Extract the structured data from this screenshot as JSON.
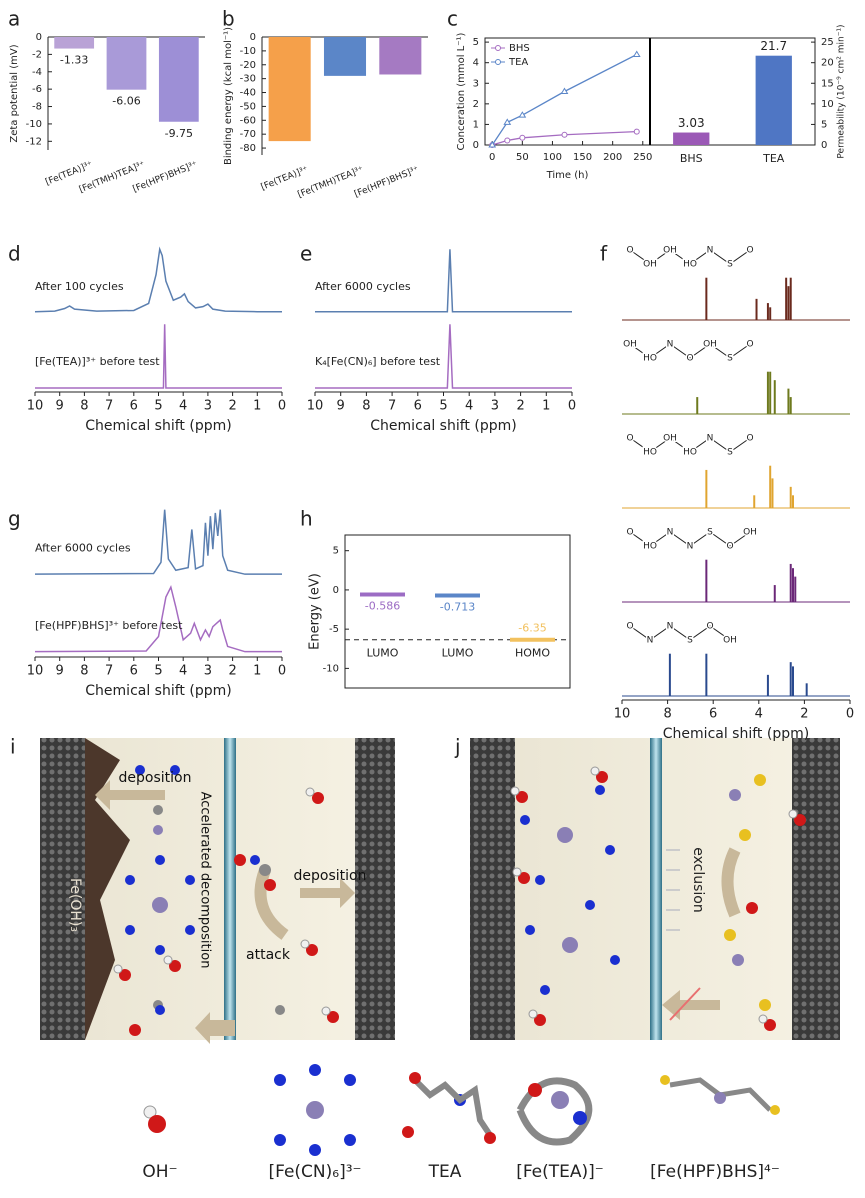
{
  "chart_data": [
    {
      "panel": "a",
      "type": "bar",
      "ylabel": "Zeta potential (mV)",
      "categories": [
        "[Fe(TEA)]³⁺",
        "[Fe(TMH)TEA]³⁺",
        "[Fe(HPF)BHS]³⁺"
      ],
      "values": [
        -1.33,
        -6.06,
        -9.75
      ],
      "colors": [
        "#b9a2d6",
        "#a99ad8",
        "#9d8fd6"
      ],
      "ylim": [
        -13,
        0
      ],
      "yticks": [
        0,
        -2,
        -4,
        -6,
        -8,
        -10,
        -12
      ],
      "data_labels": true
    },
    {
      "panel": "b",
      "type": "bar",
      "ylabel": "Binding energy (kcal mol⁻¹)",
      "categories": [
        "[Fe(TEA)]³⁺",
        "[Fe(TMH)TEA]³⁺",
        "[Fe(HPF)BHS]³⁺"
      ],
      "values": [
        -75,
        -28,
        -27
      ],
      "colors": [
        "#f5a04a",
        "#5b86c8",
        "#a57ac2"
      ],
      "ylim": [
        -85,
        0
      ],
      "yticks": [
        0,
        -10,
        -20,
        -30,
        -40,
        -50,
        -60,
        -70,
        -80
      ],
      "data_labels": false
    },
    {
      "panel": "c",
      "type": "line_bar",
      "xlabel": "Time (h)",
      "ylabel": "Conceration (mmol L⁻¹)",
      "y2label": "Permeability (10⁻⁹ cm² min⁻¹)",
      "x": [
        0,
        25,
        50,
        120,
        240
      ],
      "xlim": [
        -12,
        262
      ],
      "xticks": [
        0,
        50,
        100,
        150,
        200,
        250
      ],
      "ylim": [
        0,
        5.2
      ],
      "yticks": [
        0,
        1,
        2,
        3,
        4,
        5
      ],
      "y2lim": [
        0,
        26
      ],
      "y2ticks": [
        0,
        5,
        10,
        15,
        20,
        25
      ],
      "series": [
        {
          "name": "BHS",
          "color": "#a56cc1",
          "values": [
            0,
            0.22,
            0.35,
            0.5,
            0.65
          ]
        },
        {
          "name": "TEA",
          "color": "#5b86c8",
          "values": [
            0,
            1.1,
            1.45,
            2.6,
            4.4
          ]
        }
      ],
      "bars": {
        "categories": [
          "BHS",
          "TEA"
        ],
        "values": [
          3.03,
          21.7
        ],
        "colors": [
          "#9b59b6",
          "#4f76c4"
        ],
        "axis": "y2"
      }
    },
    {
      "panel": "d",
      "type": "spectrum",
      "xlabel": "Chemical shift (ppm)",
      "xlim": [
        10,
        0
      ],
      "xticks": [
        10,
        9,
        8,
        7,
        6,
        5,
        4,
        3,
        2,
        1,
        0
      ],
      "series": [
        {
          "name": "After 100 cycles",
          "color": "#5b7fb0",
          "x": [
            10,
            9.2,
            8.8,
            8.6,
            8.4,
            7.5,
            6,
            5.4,
            5.1,
            4.95,
            4.85,
            4.7,
            4.4,
            4.1,
            3.95,
            3.8,
            3.5,
            3.2,
            3.0,
            2.8,
            2.3,
            1,
            0
          ],
          "values": [
            0.02,
            0.03,
            0.07,
            0.11,
            0.06,
            0.03,
            0.04,
            0.15,
            0.6,
            1,
            0.9,
            0.5,
            0.2,
            0.25,
            0.3,
            0.18,
            0.08,
            0.1,
            0.14,
            0.06,
            0.03,
            0.02,
            0.02
          ]
        },
        {
          "name": "[Fe(TEA)]³⁺ before test",
          "color": "#a56cc1",
          "x": [
            10,
            4.8,
            4.75,
            4.7,
            0
          ],
          "values": [
            0,
            0,
            1,
            0,
            0
          ]
        }
      ]
    },
    {
      "panel": "e",
      "type": "spectrum",
      "xlabel": "Chemical shift (ppm)",
      "xlim": [
        10,
        0
      ],
      "xticks": [
        10,
        9,
        8,
        7,
        6,
        5,
        4,
        3,
        2,
        1,
        0
      ],
      "series": [
        {
          "name": "After 6000 cycles",
          "color": "#5b7fb0",
          "x": [
            10,
            4.85,
            4.75,
            4.65,
            0
          ],
          "values": [
            0.02,
            0.02,
            1,
            0.02,
            0.02
          ]
        },
        {
          "name": "K₄[Fe(CN)₆] before test",
          "color": "#a56cc1",
          "x": [
            10,
            4.85,
            4.75,
            4.65,
            0
          ],
          "values": [
            0,
            0,
            1,
            0,
            0
          ]
        }
      ]
    },
    {
      "panel": "f",
      "type": "stick",
      "xlabel": "Chemical shift (ppm)",
      "xlim": [
        10,
        0
      ],
      "xticks": [
        10,
        8,
        6,
        4,
        2,
        0
      ],
      "series": [
        {
          "color": "#6b2a1e",
          "structure": [
            "O",
            "OH",
            "OH",
            "HO",
            "N",
            "S",
            "O"
          ],
          "x": [
            6.3,
            4.1,
            3.6,
            3.5,
            2.8,
            2.7,
            2.6
          ],
          "values": [
            1,
            0.5,
            0.4,
            0.3,
            1,
            0.8,
            1
          ]
        },
        {
          "color": "#6e7a1e",
          "structure": [
            "OH",
            "HO",
            "N",
            "O",
            "OH",
            "S",
            "O"
          ],
          "x": [
            6.7,
            3.6,
            3.5,
            3.3,
            2.7,
            2.6
          ],
          "values": [
            0.4,
            1,
            1,
            0.8,
            0.6,
            0.4
          ]
        },
        {
          "color": "#e0a530",
          "structure": [
            "O",
            "HO",
            "OH",
            "HO",
            "N",
            "S",
            "O"
          ],
          "x": [
            6.3,
            4.2,
            3.5,
            3.4,
            2.6,
            2.5
          ],
          "values": [
            0.9,
            0.3,
            1,
            0.7,
            0.5,
            0.3
          ]
        },
        {
          "color": "#6b2878",
          "structure": [
            "O",
            "HO",
            "N",
            "N",
            "S",
            "O",
            "OH"
          ],
          "x": [
            6.3,
            3.3,
            2.6,
            2.5,
            2.4
          ],
          "values": [
            1,
            0.4,
            0.9,
            0.8,
            0.6
          ]
        },
        {
          "color": "#2a4a8e",
          "structure": [
            "O",
            "N",
            "N",
            "S",
            "O",
            "OH"
          ],
          "x": [
            7.9,
            6.3,
            3.6,
            2.6,
            2.5,
            1.9
          ],
          "values": [
            1,
            1,
            0.5,
            0.8,
            0.7,
            0.3
          ]
        }
      ]
    },
    {
      "panel": "g",
      "type": "spectrum",
      "xlabel": "Chemical shift (ppm)",
      "xlim": [
        10,
        0
      ],
      "xticks": [
        10,
        9,
        8,
        7,
        6,
        5,
        4,
        3,
        2,
        1,
        0
      ],
      "series": [
        {
          "name": "After 6000 cycles",
          "color": "#5b7fb0",
          "x": [
            10,
            5.2,
            4.9,
            4.75,
            4.6,
            4.3,
            3.8,
            3.65,
            3.5,
            3.2,
            3.1,
            3.0,
            2.9,
            2.8,
            2.7,
            2.6,
            2.5,
            2.4,
            2.2,
            1.5,
            0
          ],
          "values": [
            0.02,
            0.03,
            0.2,
            1,
            0.25,
            0.08,
            0.12,
            0.7,
            0.1,
            0.15,
            0.8,
            0.3,
            0.9,
            0.4,
            0.95,
            0.6,
            1,
            0.3,
            0.08,
            0.02,
            0.02
          ]
        },
        {
          "name": "[Fe(HPF)BHS]³⁺ before test",
          "color": "#a56cc1",
          "x": [
            10,
            5.5,
            5,
            4.7,
            4.5,
            4.3,
            4,
            3.7,
            3.55,
            3.3,
            3.1,
            2.95,
            2.8,
            2.65,
            2.5,
            2.4,
            2.2,
            1.5,
            0
          ],
          "values": [
            0.02,
            0.03,
            0.25,
            0.85,
            1,
            0.7,
            0.2,
            0.3,
            0.45,
            0.2,
            0.35,
            0.25,
            0.4,
            0.45,
            0.5,
            0.35,
            0.1,
            0.02,
            0.02
          ]
        }
      ]
    },
    {
      "panel": "h",
      "type": "energy",
      "ylabel": "Energy (eV)",
      "categories": [
        "LUMO",
        "LUMO",
        "HOMO"
      ],
      "values": [
        -0.586,
        -0.713,
        -6.35
      ],
      "colors": [
        "#9c6cc4",
        "#5b86c8",
        "#f2c15e"
      ],
      "ylim": [
        -12.5,
        7
      ],
      "yticks": [
        5,
        0,
        -5,
        -10
      ]
    }
  ],
  "schematic": {
    "i": {
      "panel": "i",
      "labels": [
        "deposition",
        "Accelerated decomposition",
        "Fe(OH)₃",
        "deposition",
        "attack"
      ]
    },
    "j": {
      "panel": "j",
      "labels": [
        "exclusion"
      ]
    },
    "legend": [
      "OH⁻",
      "[Fe(CN)₆]³⁻",
      "TEA",
      "[Fe(TEA)]⁻",
      "[Fe(HPF)BHS]⁴⁻"
    ]
  }
}
